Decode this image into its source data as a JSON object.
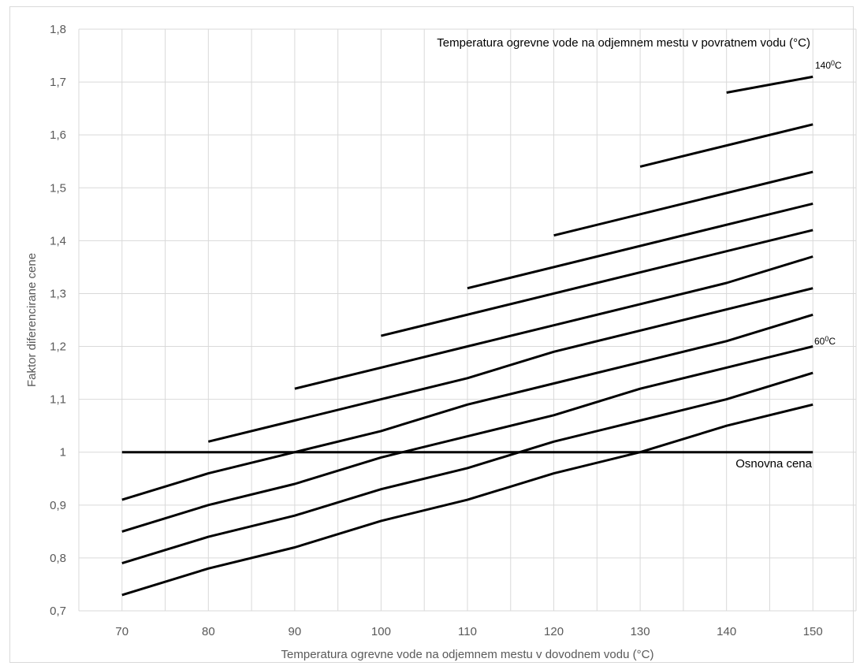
{
  "chart_data": {
    "type": "line",
    "title": "",
    "xlabel": "Temperatura ogrevne vode na odjemnem mestu v dovodnem vodu (°C)",
    "ylabel": "Faktor diferencirane cene",
    "xlim": [
      65,
      155
    ],
    "ylim": [
      0.7,
      1.8
    ],
    "x_ticks": [
      70,
      75,
      80,
      85,
      90,
      95,
      100,
      105,
      110,
      115,
      120,
      125,
      130,
      135,
      140,
      145,
      150
    ],
    "x_tick_labels": [
      "70",
      "",
      "80",
      "",
      "90",
      "",
      "100",
      "",
      "110",
      "",
      "120",
      "",
      "130",
      "",
      "140",
      "",
      "150"
    ],
    "y_ticks": [
      0.7,
      0.8,
      0.9,
      1.0,
      1.1,
      1.2,
      1.3,
      1.4,
      1.5,
      1.6,
      1.7,
      1.8
    ],
    "y_tick_labels": [
      "0,7",
      "0,8",
      "0,9",
      "1",
      "1,1",
      "1,2",
      "1,3",
      "1,4",
      "1,5",
      "1,6",
      "1,7",
      "1,8"
    ],
    "grid": true,
    "line_color": "#000000",
    "grid_color": "#d9d9d9",
    "series": [
      {
        "x": [
          140,
          150
        ],
        "y": [
          1.68,
          1.71
        ]
      },
      {
        "x": [
          130,
          150
        ],
        "y": [
          1.54,
          1.62
        ]
      },
      {
        "x": [
          120,
          150
        ],
        "y": [
          1.41,
          1.53
        ]
      },
      {
        "x": [
          110,
          150
        ],
        "y": [
          1.31,
          1.47
        ]
      },
      {
        "x": [
          100,
          150
        ],
        "y": [
          1.22,
          1.42
        ]
      },
      {
        "x": [
          90,
          100,
          110,
          120,
          130,
          140,
          150
        ],
        "y": [
          1.12,
          1.16,
          1.2,
          1.24,
          1.28,
          1.32,
          1.37
        ]
      },
      {
        "x": [
          80,
          90,
          100,
          110,
          120,
          130,
          140,
          150
        ],
        "y": [
          1.02,
          1.06,
          1.1,
          1.14,
          1.19,
          1.23,
          1.27,
          1.31
        ]
      },
      {
        "x": [
          70,
          80,
          90,
          100,
          110,
          120,
          130,
          140,
          150
        ],
        "y": [
          0.91,
          0.96,
          1.0,
          1.04,
          1.09,
          1.13,
          1.17,
          1.21,
          1.26
        ]
      },
      {
        "x": [
          70,
          80,
          90,
          100,
          110,
          120,
          130,
          140,
          150
        ],
        "y": [
          0.85,
          0.9,
          0.94,
          0.99,
          1.03,
          1.07,
          1.12,
          1.16,
          1.2
        ]
      },
      {
        "x": [
          70,
          80,
          90,
          100,
          110,
          120,
          130,
          140,
          150
        ],
        "y": [
          0.79,
          0.84,
          0.88,
          0.93,
          0.97,
          1.02,
          1.06,
          1.1,
          1.15
        ]
      },
      {
        "x": [
          70,
          80,
          90,
          100,
          110,
          120,
          130,
          140,
          150
        ],
        "y": [
          0.73,
          0.78,
          0.82,
          0.87,
          0.91,
          0.96,
          1.0,
          1.05,
          1.09
        ]
      },
      {
        "x": [
          70,
          150
        ],
        "y": [
          1.0,
          1.0
        ]
      }
    ],
    "annotations": [
      {
        "text": "Temperatura ogrevne vode na odjemnem mestu v povratnem vodu (°C)"
      },
      {
        "text": "1400C"
      },
      {
        "text": "600C"
      },
      {
        "text": "Osnovna cena"
      }
    ]
  }
}
